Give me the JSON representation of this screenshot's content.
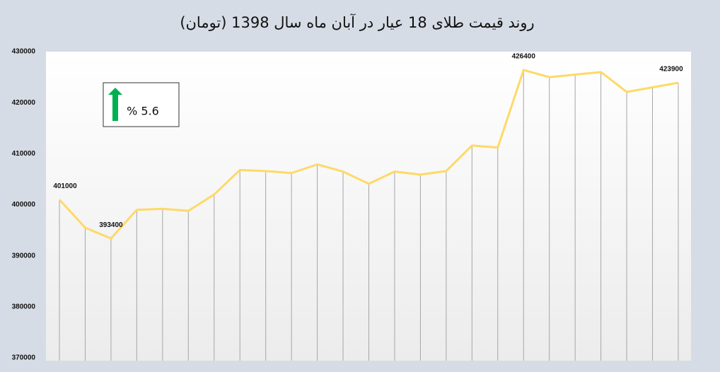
{
  "chart_data": {
    "type": "line",
    "title": "روند قیمت طلای 18 عیار در آبان ماه سال 1398 (تومان)",
    "annotation": "% 5.6",
    "categories": [
      null,
      null,
      null,
      null,
      null,
      null,
      null,
      null,
      null,
      null,
      null,
      null,
      null,
      null,
      null,
      null,
      null,
      null,
      null,
      null,
      null,
      null,
      null,
      null,
      null
    ],
    "values": [
      401000,
      395500,
      393400,
      399000,
      399200,
      398800,
      402000,
      406800,
      406600,
      406200,
      407900,
      406500,
      404100,
      406500,
      405900,
      406600,
      411600,
      411200,
      426400,
      425000,
      425500,
      426000,
      422100,
      423000,
      423900
    ],
    "value_labels": [
      "401000",
      null,
      "393400",
      null,
      null,
      null,
      null,
      null,
      null,
      null,
      null,
      null,
      null,
      null,
      null,
      null,
      null,
      null,
      "426400",
      null,
      null,
      null,
      null,
      null,
      "423900"
    ],
    "color": "#ffd966",
    "ylim": [
      370000,
      430000
    ],
    "yticks": [
      370000,
      380000,
      390000,
      400000,
      410000,
      420000,
      430000
    ],
    "drop_lines": true
  }
}
